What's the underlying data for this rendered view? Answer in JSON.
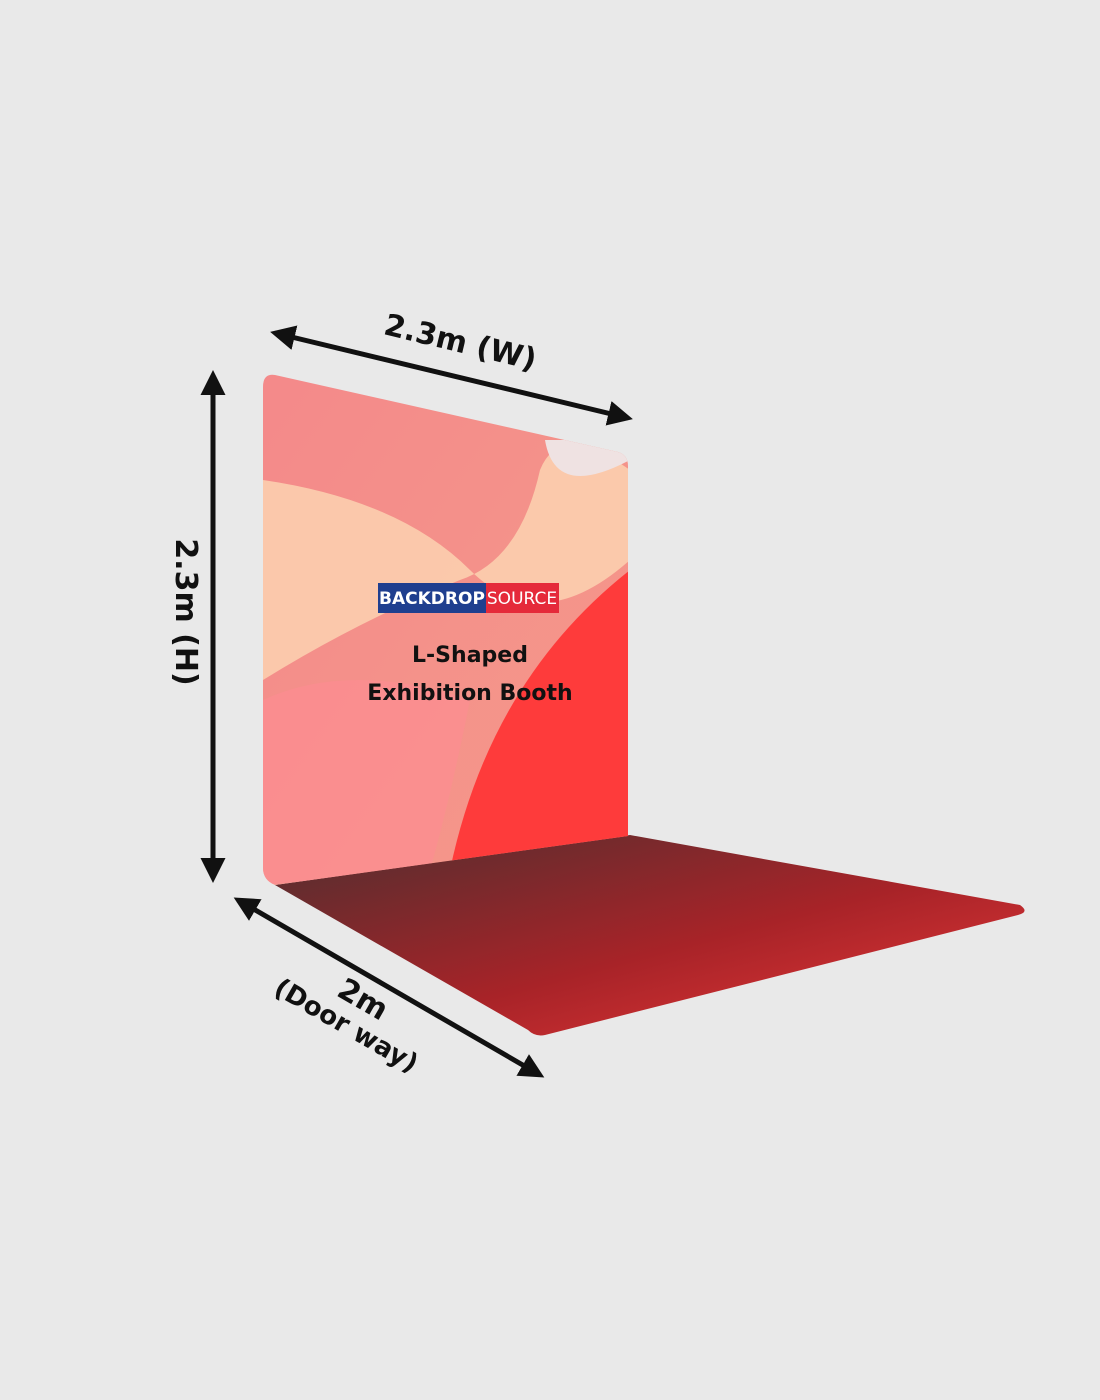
{
  "width_label": "2.3m (W)",
  "height_label": "2.3m (H)",
  "depth_label": "2m",
  "depth_note": "(Door way)",
  "logo": {
    "part1": "BACKDROP",
    "part2": "SOURCE"
  },
  "booth_title": {
    "line1": "L-Shaped",
    "line2": "Exhibition Booth"
  }
}
